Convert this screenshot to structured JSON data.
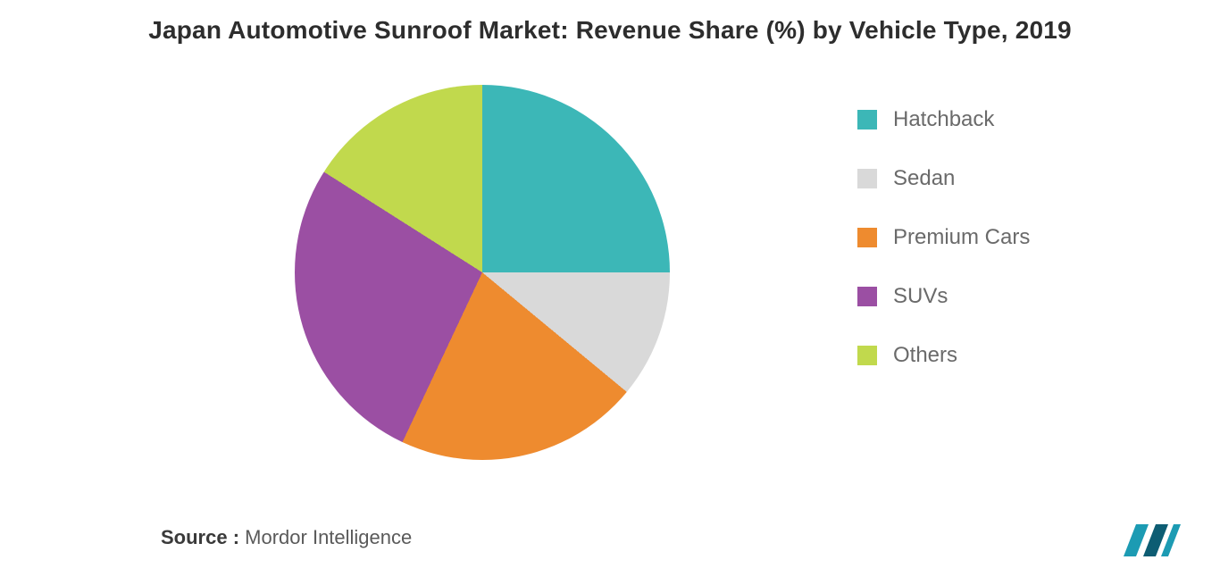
{
  "title": "Japan Automotive Sunroof Market: Revenue Share (%) by Vehicle Type, 2019",
  "chart": {
    "type": "pie",
    "background_color": "#ffffff",
    "title_fontsize": 28,
    "title_color": "#2d2d2d",
    "legend_fontsize": 24,
    "legend_color": "#6a6a6a",
    "legend_swatch_size": 22,
    "start_angle_deg": 0,
    "direction": "clockwise",
    "slices": [
      {
        "label": "Hatchback",
        "value": 25,
        "color": "#3cb7b7"
      },
      {
        "label": "Sedan",
        "value": 11,
        "color": "#d9d9d9"
      },
      {
        "label": "Premium Cars",
        "value": 21,
        "color": "#ee8b2f"
      },
      {
        "label": "SUVs",
        "value": 27,
        "color": "#9b4fa3"
      },
      {
        "label": "Others",
        "value": 16,
        "color": "#c1d94d"
      }
    ]
  },
  "source": {
    "label": "Source :",
    "value": "Mordor Intelligence"
  },
  "logo": {
    "name": "mordor-logo",
    "primary": "#1c9bb3",
    "secondary": "#0d5d73"
  }
}
